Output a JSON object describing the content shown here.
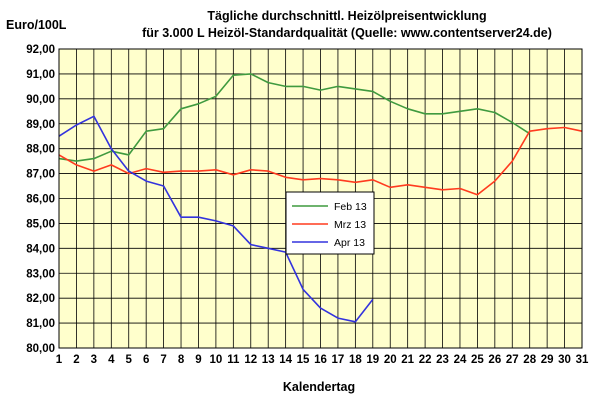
{
  "chart_data": {
    "type": "line",
    "title": "Tägliche durchschnittl. Heizölpreisentwicklung",
    "subtitle": "für 3.000 L Heizöl-Standardqualität (Quelle: www.contentserver24.de)",
    "xlabel": "Kalendertag",
    "ylabel": "Euro/100L",
    "ylim": [
      80,
      92
    ],
    "xlim": [
      1,
      31
    ],
    "y_ticks": [
      "80,00",
      "81,00",
      "82,00",
      "83,00",
      "84,00",
      "85,00",
      "86,00",
      "87,00",
      "88,00",
      "89,00",
      "90,00",
      "91,00",
      "92,00"
    ],
    "x_ticks": [
      "1",
      "2",
      "3",
      "4",
      "5",
      "6",
      "7",
      "8",
      "9",
      "10",
      "11",
      "12",
      "13",
      "14",
      "15",
      "16",
      "17",
      "18",
      "19",
      "20",
      "21",
      "22",
      "23",
      "24",
      "25",
      "26",
      "27",
      "28",
      "29",
      "30",
      "31"
    ],
    "grid": true,
    "legend_position": "right-center",
    "plot_background": "#ffffcc",
    "series": [
      {
        "name": "Feb 13",
        "color": "#3f9a3f",
        "x": [
          1,
          2,
          3,
          4,
          5,
          6,
          7,
          8,
          9,
          10,
          11,
          12,
          13,
          14,
          15,
          16,
          17,
          18,
          19,
          20,
          21,
          22,
          23,
          24,
          25,
          26,
          27,
          28
        ],
        "values": [
          87.6,
          87.5,
          87.6,
          87.9,
          87.75,
          88.7,
          88.8,
          89.6,
          89.8,
          90.1,
          90.95,
          91.0,
          90.65,
          90.5,
          90.5,
          90.35,
          90.5,
          90.4,
          90.3,
          89.9,
          89.6,
          89.4,
          89.4,
          89.5,
          89.6,
          89.45,
          89.05,
          88.6
        ]
      },
      {
        "name": "Mrz 13",
        "color": "#ff3b1f",
        "x": [
          1,
          2,
          3,
          4,
          5,
          6,
          7,
          8,
          9,
          10,
          11,
          12,
          13,
          14,
          15,
          16,
          17,
          18,
          19,
          20,
          21,
          22,
          23,
          24,
          25,
          26,
          27,
          28,
          29,
          30,
          31
        ],
        "values": [
          87.75,
          87.35,
          87.1,
          87.35,
          87.0,
          87.2,
          87.05,
          87.1,
          87.1,
          87.15,
          86.95,
          87.15,
          87.1,
          86.85,
          86.75,
          86.8,
          86.75,
          86.65,
          86.75,
          86.45,
          86.55,
          86.45,
          86.35,
          86.4,
          86.15,
          86.7,
          87.5,
          88.7,
          88.8,
          88.85,
          88.7
        ]
      },
      {
        "name": "Apr 13",
        "color": "#3333dd",
        "x": [
          1,
          2,
          3,
          4,
          5,
          6,
          7,
          8,
          9,
          10,
          11,
          12,
          13,
          14,
          15,
          16,
          17,
          18,
          19
        ],
        "values": [
          88.5,
          88.95,
          89.3,
          88.0,
          87.1,
          86.7,
          86.5,
          85.25,
          85.25,
          85.1,
          84.9,
          84.15,
          84.0,
          83.85,
          82.35,
          81.6,
          81.2,
          81.05,
          81.95
        ]
      }
    ]
  }
}
